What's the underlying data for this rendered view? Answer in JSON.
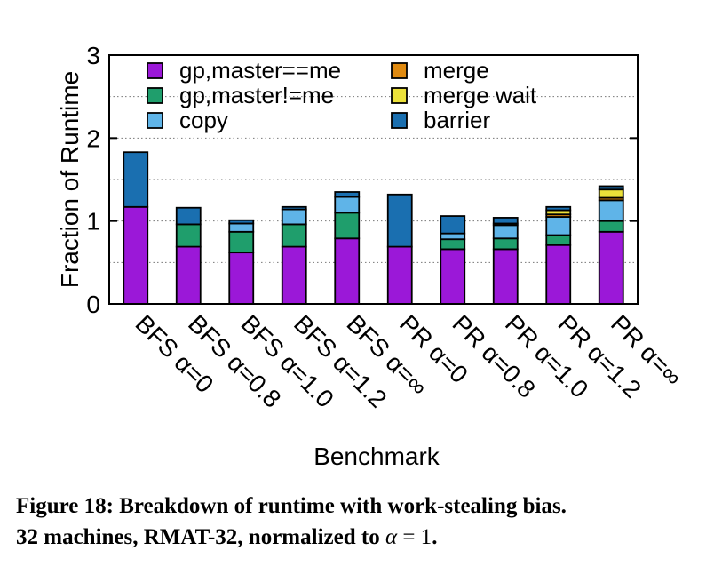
{
  "chart_data": {
    "type": "bar",
    "stacked": true,
    "xlabel": "Benchmark",
    "ylabel": "Fraction of Runtime",
    "ylim": [
      0,
      3
    ],
    "yticks": [
      0,
      1,
      2,
      3
    ],
    "grid": true,
    "legend_position": "top",
    "categories": [
      "BFS α=0",
      "BFS α=0.8",
      "BFS α=1.0",
      "BFS α=1.2",
      "BFS α=∞",
      "PR α=0",
      "PR α=0.8",
      "PR α=1.0",
      "PR α=1.2",
      "PR α=∞"
    ],
    "series": [
      {
        "name": "gp,master==me",
        "color": "#9b18d8",
        "values": [
          1.17,
          0.69,
          0.62,
          0.69,
          0.79,
          0.69,
          0.66,
          0.66,
          0.71,
          0.87
        ]
      },
      {
        "name": "gp,master!=me",
        "color": "#1f9e6c",
        "values": [
          0.0,
          0.27,
          0.25,
          0.27,
          0.31,
          0.0,
          0.12,
          0.13,
          0.12,
          0.13
        ]
      },
      {
        "name": "copy",
        "color": "#5fb4e8",
        "values": [
          0.0,
          0.0,
          0.1,
          0.18,
          0.19,
          0.0,
          0.07,
          0.16,
          0.22,
          0.25
        ]
      },
      {
        "name": "merge",
        "color": "#e08a10",
        "values": [
          0.0,
          0.0,
          0.0,
          0.0,
          0.0,
          0.0,
          0.0,
          0.0,
          0.03,
          0.03
        ]
      },
      {
        "name": "merge wait",
        "color": "#ece13a",
        "values": [
          0.0,
          0.0,
          0.0,
          0.0,
          0.0,
          0.0,
          0.0,
          0.02,
          0.05,
          0.1
        ]
      },
      {
        "name": "barrier",
        "color": "#1a6fb0",
        "values": [
          0.66,
          0.2,
          0.04,
          0.03,
          0.06,
          0.63,
          0.21,
          0.07,
          0.04,
          0.04
        ]
      }
    ]
  },
  "caption": {
    "label": "Figure 18:",
    "line1": "Breakdown of runtime with work-stealing bias.",
    "line2_prefix": "32 machines, RMAT-32, normalized to",
    "math_var": "α",
    "math_rest": " = 1",
    "period": "."
  }
}
